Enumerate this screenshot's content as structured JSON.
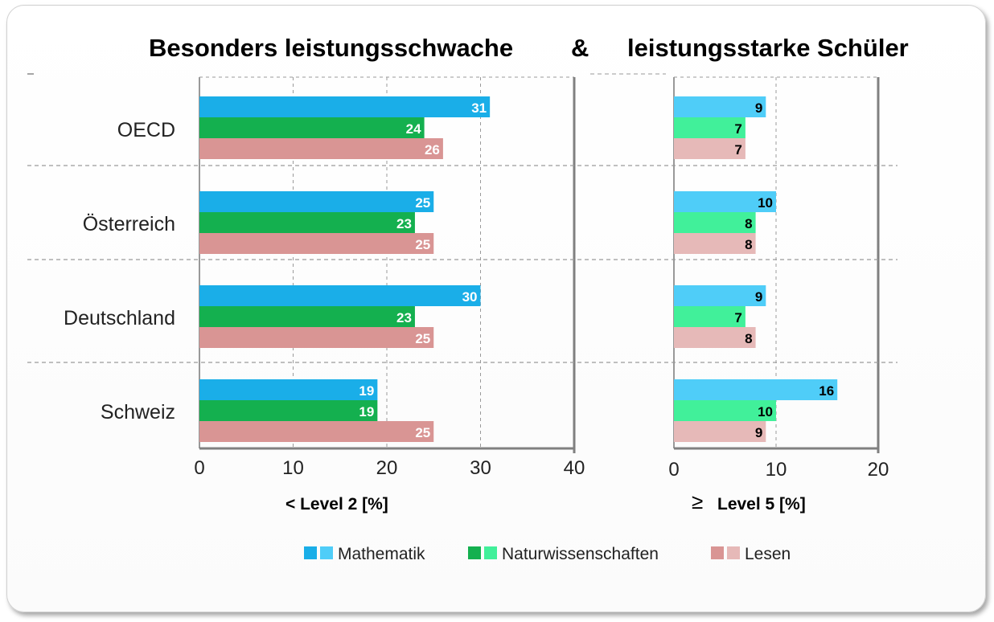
{
  "title_left": "Besonders leistungsschwache",
  "title_amp": "&",
  "title_right": "leistungsstarke Schüler",
  "colors": {
    "math_left": "#1aaee8",
    "math_right": "#4fcdf8",
    "sci_left": "#14b04f",
    "sci_right": "#41f09a",
    "read_left": "#d99594",
    "read_right": "#e6b9b8"
  },
  "chart_data": [
    {
      "type": "bar",
      "orientation": "horizontal",
      "categories": [
        "OECD",
        "Österreich",
        "Deutschland",
        "Schweiz"
      ],
      "series": [
        {
          "name": "Mathematik",
          "values": [
            31,
            25,
            30,
            19
          ]
        },
        {
          "name": "Naturwissenschaften",
          "values": [
            24,
            23,
            23,
            19
          ]
        },
        {
          "name": "Lesen",
          "values": [
            26,
            25,
            25,
            25
          ]
        }
      ],
      "xlabel": "< Level 2 [%]",
      "xlim": [
        0,
        40
      ],
      "xticks": [
        "0",
        "10",
        "20",
        "30",
        "40"
      ],
      "grid": true,
      "value_labels": true
    },
    {
      "type": "bar",
      "orientation": "horizontal",
      "categories": [
        "OECD",
        "Österreich",
        "Deutschland",
        "Schweiz"
      ],
      "series": [
        {
          "name": "Mathematik",
          "values": [
            9,
            10,
            9,
            16
          ]
        },
        {
          "name": "Naturwissenschaften",
          "values": [
            7,
            8,
            7,
            10
          ]
        },
        {
          "name": "Lesen",
          "values": [
            7,
            8,
            8,
            9
          ]
        }
      ],
      "xlabel_symbol": "≥",
      "xlabel": "Level 5 [%]",
      "xlim": [
        0,
        20
      ],
      "xticks": [
        "0",
        "10",
        "20"
      ],
      "grid": true,
      "value_labels": true
    }
  ],
  "legend": {
    "position": "bottom",
    "items": [
      "Mathematik",
      "Naturwissenschaften",
      "Lesen"
    ]
  }
}
